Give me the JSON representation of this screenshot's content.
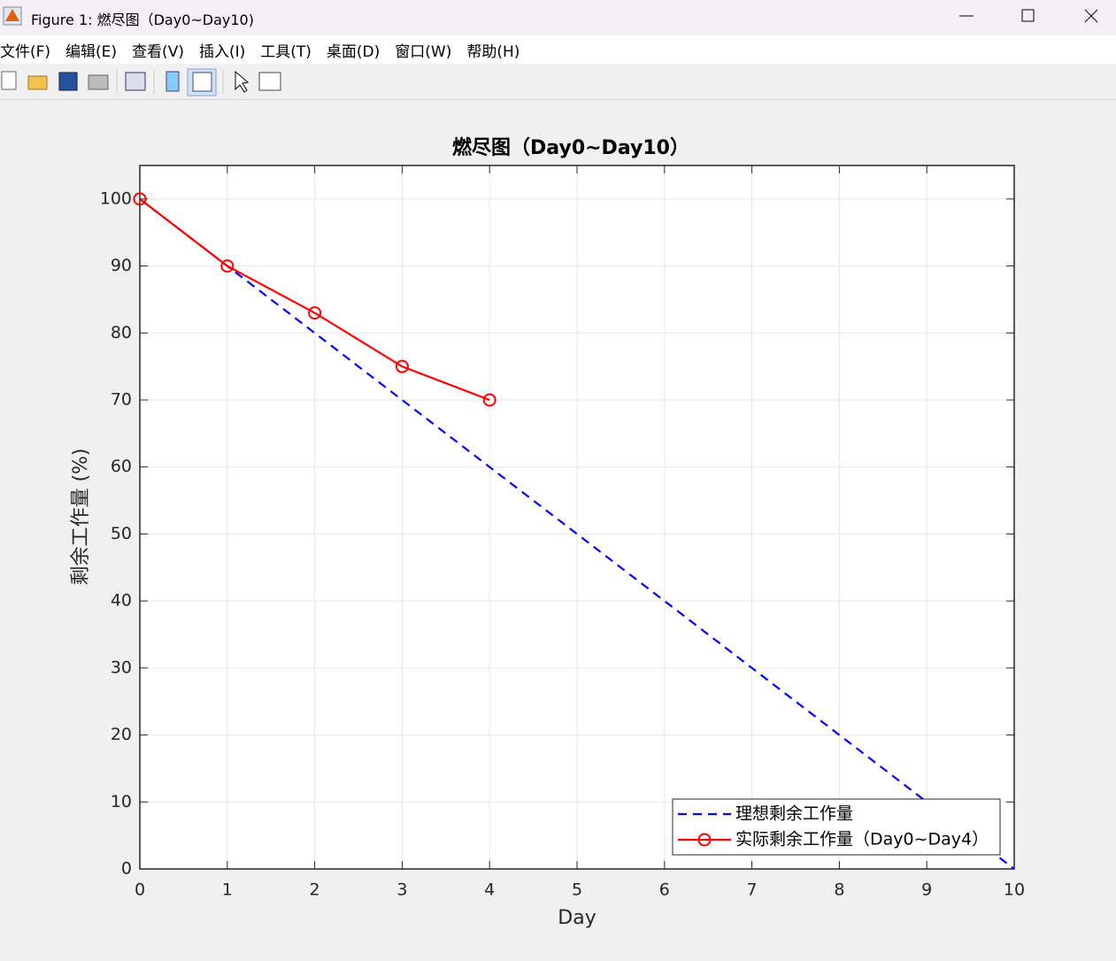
{
  "window": {
    "title": "Figure 1: 燃尽图（Day0~Day10)"
  },
  "menu": [
    "文件(F)",
    "编辑(E)",
    "查看(V)",
    "插入(I)",
    "工具(T)",
    "桌面(D)",
    "窗口(W)",
    "帮助(H)"
  ],
  "chart_data": {
    "type": "line",
    "title": "燃尽图（Day0~Day10）",
    "xlabel": "Day",
    "ylabel": "剩余工作量 (%)",
    "xlim": [
      0,
      10
    ],
    "ylim": [
      0,
      105
    ],
    "xticks": [
      0,
      1,
      2,
      3,
      4,
      5,
      6,
      7,
      8,
      9,
      10
    ],
    "yticks": [
      0,
      10,
      20,
      30,
      40,
      50,
      60,
      70,
      80,
      90,
      100
    ],
    "grid": true,
    "legend": "lower right",
    "series": [
      {
        "name": "理想剩余工作量",
        "color": "#0000ff",
        "style": "dashed",
        "marker": "none",
        "x": [
          0,
          1,
          2,
          3,
          4,
          5,
          6,
          7,
          8,
          9,
          10
        ],
        "values": [
          100,
          90,
          80,
          70,
          60,
          50,
          40,
          30,
          20,
          10,
          0
        ]
      },
      {
        "name": "实际剩余工作量（Day0~Day4）",
        "color": "#ff0000",
        "style": "solid",
        "marker": "circle",
        "x": [
          0,
          1,
          2,
          3,
          4
        ],
        "values": [
          100,
          90,
          83,
          75,
          70
        ]
      }
    ]
  }
}
